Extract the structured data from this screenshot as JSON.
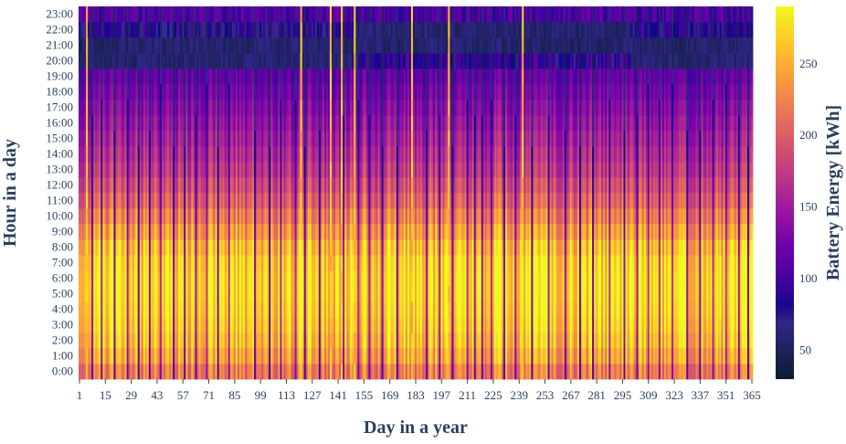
{
  "chart_data": {
    "type": "heatmap",
    "title": "",
    "xlabel": "Day in a year",
    "ylabel": "Hour in a day",
    "colorbar_title": "Battery Energy [kWh]",
    "colorscale": "plasma",
    "x_range": [
      1,
      365
    ],
    "y_categories": [
      "0:00",
      "1:00",
      "2:00",
      "3:00",
      "4:00",
      "5:00",
      "6:00",
      "7:00",
      "8:00",
      "9:00",
      "10:00",
      "11:00",
      "12:00",
      "13:00",
      "14:00",
      "15:00",
      "16:00",
      "17:00",
      "18:00",
      "19:00",
      "20:00",
      "21:00",
      "22:00",
      "23:00"
    ],
    "x_ticks": [
      1,
      15,
      29,
      43,
      57,
      71,
      85,
      99,
      113,
      127,
      141,
      155,
      169,
      183,
      197,
      211,
      225,
      239,
      253,
      267,
      281,
      295,
      309,
      323,
      337,
      351,
      365
    ],
    "color_range": [
      30,
      290
    ],
    "colorbar_ticks": [
      50,
      100,
      150,
      200,
      250
    ],
    "hourly_profile_kwh": [
      230,
      255,
      270,
      280,
      286,
      290,
      290,
      285,
      270,
      250,
      230,
      210,
      195,
      180,
      170,
      160,
      150,
      140,
      130,
      120,
      100,
      80,
      60,
      70
    ],
    "evening_low_kwh": {
      "winter_days": [
        1,
        90,
        300,
        365
      ],
      "summer_days": [
        150,
        300
      ],
      "winter_hours": [
        20,
        21
      ],
      "summer_hours": [
        21,
        22
      ]
    },
    "low_days": [
      8,
      13,
      20,
      27,
      33,
      39,
      45,
      52,
      58,
      64,
      70,
      76,
      82,
      96,
      104,
      110,
      118,
      123,
      131,
      137,
      144,
      150,
      152,
      158,
      165,
      173,
      181,
      189,
      196,
      203,
      211,
      215,
      219,
      224,
      231,
      237,
      246,
      255,
      264,
      272,
      279,
      288,
      296,
      303,
      309,
      315,
      322,
      330,
      337,
      344,
      351,
      358,
      363
    ],
    "high_days": [
      5,
      121,
      137,
      143,
      150,
      181,
      201,
      241
    ]
  }
}
